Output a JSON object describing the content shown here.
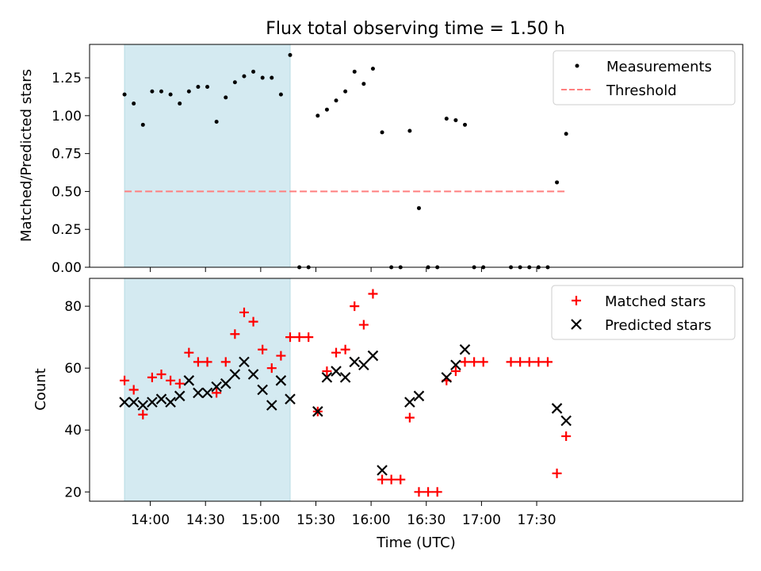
{
  "title": "Flux total observing time = 1.50 h",
  "chart_data": [
    {
      "type": "scatter",
      "panel": "top",
      "ylabel": "Matched/Predicted stars",
      "xlabel": "",
      "ylim": [
        0,
        1.47
      ],
      "xlim": [
        "13:27",
        "19:22"
      ],
      "yticks": [
        0.0,
        0.25,
        0.5,
        0.75,
        1.0,
        1.25
      ],
      "ytick_labels": [
        "0.00",
        "0.25",
        "0.50",
        "0.75",
        "1.00",
        "1.25"
      ],
      "shaded_interval": [
        "13:46",
        "15:16"
      ],
      "shade_color": "#d4eaf1",
      "legend": {
        "placement": "top-right",
        "entries": [
          "Measurements",
          "Threshold"
        ]
      },
      "series": [
        {
          "name": "Measurements",
          "marker": "dot",
          "color": "#000000",
          "x": [
            "13:46",
            "13:51",
            "13:56",
            "14:01",
            "14:06",
            "14:11",
            "14:16",
            "14:21",
            "14:26",
            "14:31",
            "14:36",
            "14:41",
            "14:46",
            "14:51",
            "14:56",
            "15:01",
            "15:06",
            "15:11",
            "15:16",
            "15:21",
            "15:26",
            "15:31",
            "15:36",
            "15:41",
            "15:46",
            "15:51",
            "15:56",
            "16:01",
            "16:06",
            "16:11",
            "16:16",
            "16:21",
            "16:26",
            "16:31",
            "16:36",
            "16:41",
            "16:46",
            "16:51",
            "16:56",
            "17:01",
            "17:16",
            "17:21",
            "17:26",
            "17:31",
            "17:36",
            "17:41",
            "17:46"
          ],
          "y": [
            1.14,
            1.08,
            0.94,
            1.16,
            1.16,
            1.14,
            1.08,
            1.16,
            1.19,
            1.19,
            0.96,
            1.12,
            1.22,
            1.26,
            1.29,
            1.25,
            1.25,
            1.14,
            1.4,
            0.0,
            0.0,
            1.0,
            1.04,
            1.1,
            1.16,
            1.29,
            1.21,
            1.31,
            0.89,
            0.0,
            0.0,
            0.9,
            0.39,
            0.0,
            0.0,
            0.98,
            0.97,
            0.94,
            0.0,
            0.0,
            0.0,
            0.0,
            0.0,
            0.0,
            0.0,
            0.56,
            0.88
          ]
        },
        {
          "name": "Threshold",
          "line": "dashed",
          "color": "#ff7f7f",
          "x": [
            "13:46",
            "17:46"
          ],
          "y": [
            0.5,
            0.5
          ]
        }
      ]
    },
    {
      "type": "scatter",
      "panel": "bottom",
      "ylabel": "Count",
      "xlabel": "Time (UTC)",
      "ylim": [
        17,
        89
      ],
      "xlim": [
        "13:27",
        "19:22"
      ],
      "yticks": [
        20,
        40,
        60,
        80
      ],
      "ytick_labels": [
        "20",
        "40",
        "60",
        "80"
      ],
      "xticks": [
        "14:00",
        "14:30",
        "15:00",
        "15:30",
        "16:00",
        "16:30",
        "17:00",
        "17:30"
      ],
      "xtick_labels": [
        "14:00",
        "14:30",
        "15:00",
        "15:30",
        "16:00",
        "16:30",
        "17:00",
        "17:30"
      ],
      "shaded_interval": [
        "13:46",
        "15:16"
      ],
      "shade_color": "#d4eaf1",
      "legend": {
        "placement": "top-right",
        "entries": [
          "Matched stars",
          "Predicted stars"
        ]
      },
      "series": [
        {
          "name": "Matched stars",
          "marker": "plus",
          "color": "#ff0000",
          "x": [
            "13:46",
            "13:51",
            "13:56",
            "14:01",
            "14:06",
            "14:11",
            "14:16",
            "14:21",
            "14:26",
            "14:31",
            "14:36",
            "14:41",
            "14:46",
            "14:51",
            "14:56",
            "15:01",
            "15:06",
            "15:11",
            "15:16",
            "15:21",
            "15:26",
            "15:31",
            "15:36",
            "15:41",
            "15:46",
            "15:51",
            "15:56",
            "16:01",
            "16:06",
            "16:11",
            "16:16",
            "16:21",
            "16:26",
            "16:31",
            "16:36",
            "16:41",
            "16:46",
            "16:51",
            "16:56",
            "17:01",
            "17:16",
            "17:21",
            "17:26",
            "17:31",
            "17:36",
            "17:41",
            "17:46"
          ],
          "y": [
            56,
            53,
            45,
            57,
            58,
            56,
            55,
            65,
            62,
            62,
            52,
            62,
            71,
            78,
            75,
            66,
            60,
            64,
            70,
            70,
            70,
            46,
            59,
            65,
            66,
            80,
            74,
            84,
            24,
            24,
            24,
            44,
            20,
            20,
            20,
            56,
            59,
            62,
            62,
            62,
            62,
            62,
            62,
            62,
            62,
            26,
            38
          ]
        },
        {
          "name": "Predicted stars",
          "marker": "x",
          "color": "#000000",
          "x": [
            "13:46",
            "13:51",
            "13:56",
            "14:01",
            "14:06",
            "14:11",
            "14:16",
            "14:21",
            "14:26",
            "14:31",
            "14:36",
            "14:41",
            "14:46",
            "14:51",
            "14:56",
            "15:01",
            "15:06",
            "15:11",
            "15:16",
            "15:31",
            "15:36",
            "15:41",
            "15:46",
            "15:51",
            "15:56",
            "16:01",
            "16:06",
            "16:21",
            "16:26",
            "16:41",
            "16:46",
            "16:51",
            "17:41",
            "17:46"
          ],
          "y": [
            49,
            49,
            48,
            49,
            50,
            49,
            51,
            56,
            52,
            52,
            54,
            55,
            58,
            62,
            58,
            53,
            48,
            56,
            50,
            46,
            57,
            59,
            57,
            62,
            61,
            64,
            27,
            49,
            51,
            57,
            61,
            66,
            47,
            43
          ]
        }
      ]
    }
  ]
}
